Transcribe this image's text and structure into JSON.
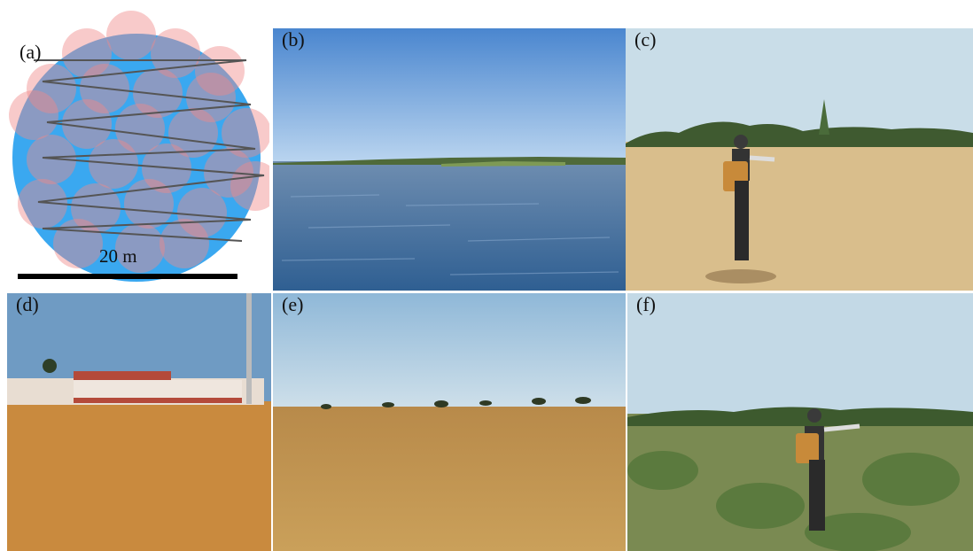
{
  "panels": [
    {
      "id": "a",
      "label": "(a)",
      "scale_bar": "20 m"
    },
    {
      "id": "b",
      "label": "(b)"
    },
    {
      "id": "c",
      "label": "(c)"
    },
    {
      "id": "d",
      "label": "(d)"
    },
    {
      "id": "e",
      "label": "(e)"
    },
    {
      "id": "f",
      "label": "(f)"
    }
  ],
  "colors": {
    "plot_circle": "#3aa8f0",
    "footprint": "#f08a8a",
    "track_line": "#555555",
    "water": "#3d6fa3",
    "sky": "#6b9fd8",
    "sand": "#d9be8c",
    "grass": "#caa05a",
    "shrub": "#5b7a3e"
  }
}
